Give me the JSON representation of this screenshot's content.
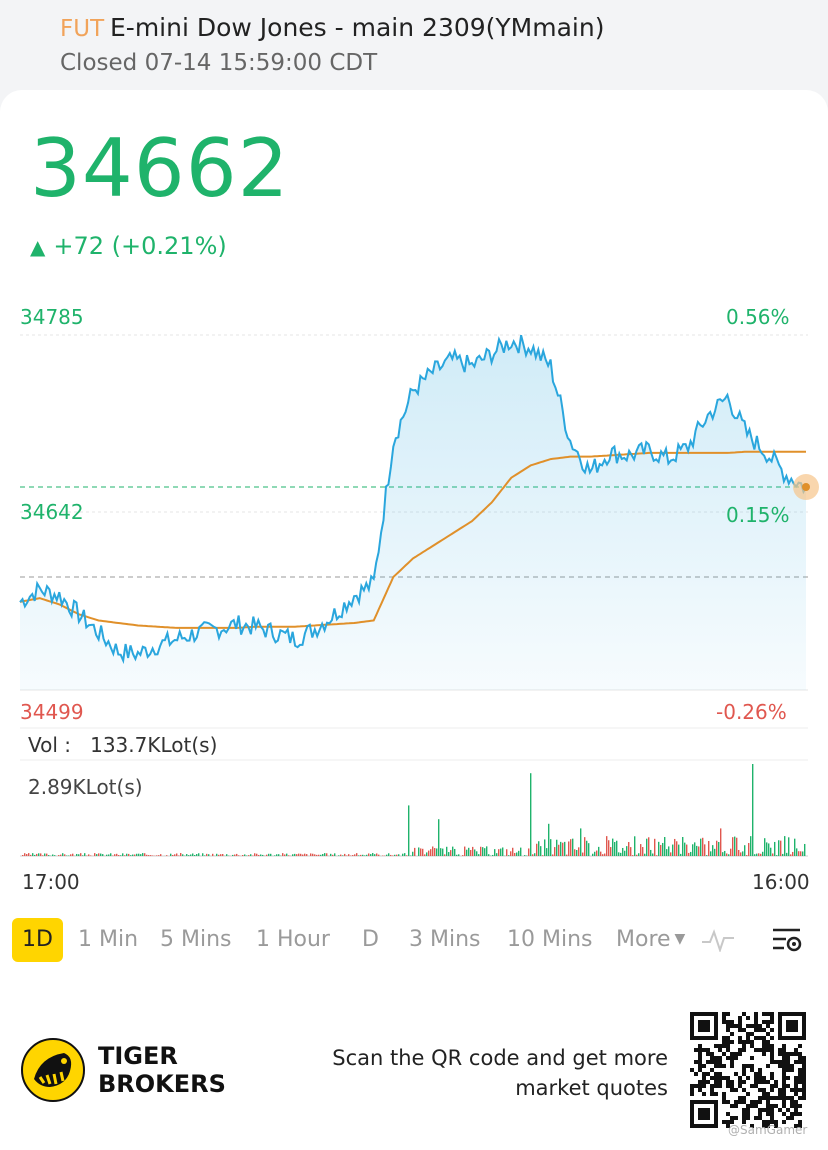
{
  "header": {
    "badge": "FUT",
    "title": "E-mini Dow Jones - main 2309(YMmain)",
    "status": "Closed 07-14 15:59:00 CDT"
  },
  "quote": {
    "price": "34662",
    "change_arrow": "▲",
    "change": "+72 (+0.21%)"
  },
  "chart_labels": {
    "high_price": "34785",
    "high_pct": "0.56%",
    "mid_price": "34642",
    "mid_pct": "0.15%",
    "low_price": "34499",
    "low_pct": "-0.26%",
    "volume_label": "Vol :",
    "volume_value": "133.7KLot(s)",
    "volume_max": "2.89KLot(s)",
    "time_start": "17:00",
    "time_end": "16:00"
  },
  "chart_data": {
    "type": "line",
    "title": "",
    "ylim": [
      34499,
      34785
    ],
    "series": [
      {
        "values": [
          34570,
          34580,
          34575,
          34560,
          34545,
          34530,
          34528,
          34535,
          34540,
          34545,
          34548,
          34552,
          34550,
          34545,
          34540,
          34548,
          34560,
          34575,
          34585,
          34700,
          34740,
          34755,
          34765,
          34760,
          34770,
          34780,
          34775,
          34760,
          34700,
          34675,
          34690,
          34688,
          34692,
          34685,
          34695,
          34720,
          34735,
          34705,
          34690,
          34672,
          34662
        ]
      },
      {
        "values": [
          34570,
          34573,
          34568,
          34560,
          34555,
          34553,
          34551,
          34550,
          34549,
          34549,
          34549,
          34549,
          34550,
          34550,
          34550,
          34551,
          34552,
          34553,
          34555,
          34590,
          34605,
          34615,
          34625,
          34635,
          34650,
          34670,
          34680,
          34685,
          34687,
          34687,
          34688,
          34689,
          34690,
          34690,
          34690,
          34690,
          34690,
          34691,
          34691,
          34691,
          34691
        ]
      }
    ],
    "prev_close": 34590,
    "volume_spikes": [
      0.55,
      0.4,
      0.9,
      0.45,
      0.5,
      0.6,
      0.45,
      1.0
    ]
  },
  "timeframes": [
    "1D",
    "1 Min",
    "5 Mins",
    "1 Hour",
    "D",
    "3 Mins",
    "10 Mins",
    "More"
  ],
  "footer": {
    "brand_line1": "TIGER",
    "brand_line2": "BROKERS",
    "scan_line1": "Scan the QR code and get more",
    "scan_line2": "market quotes",
    "watermark": "@SamGamer"
  },
  "colors": {
    "up": "#1fb36b",
    "down": "#e0574f",
    "price_line": "#2aa6dd",
    "avg_line": "#e0902a",
    "active_tab": "#ffd500"
  }
}
